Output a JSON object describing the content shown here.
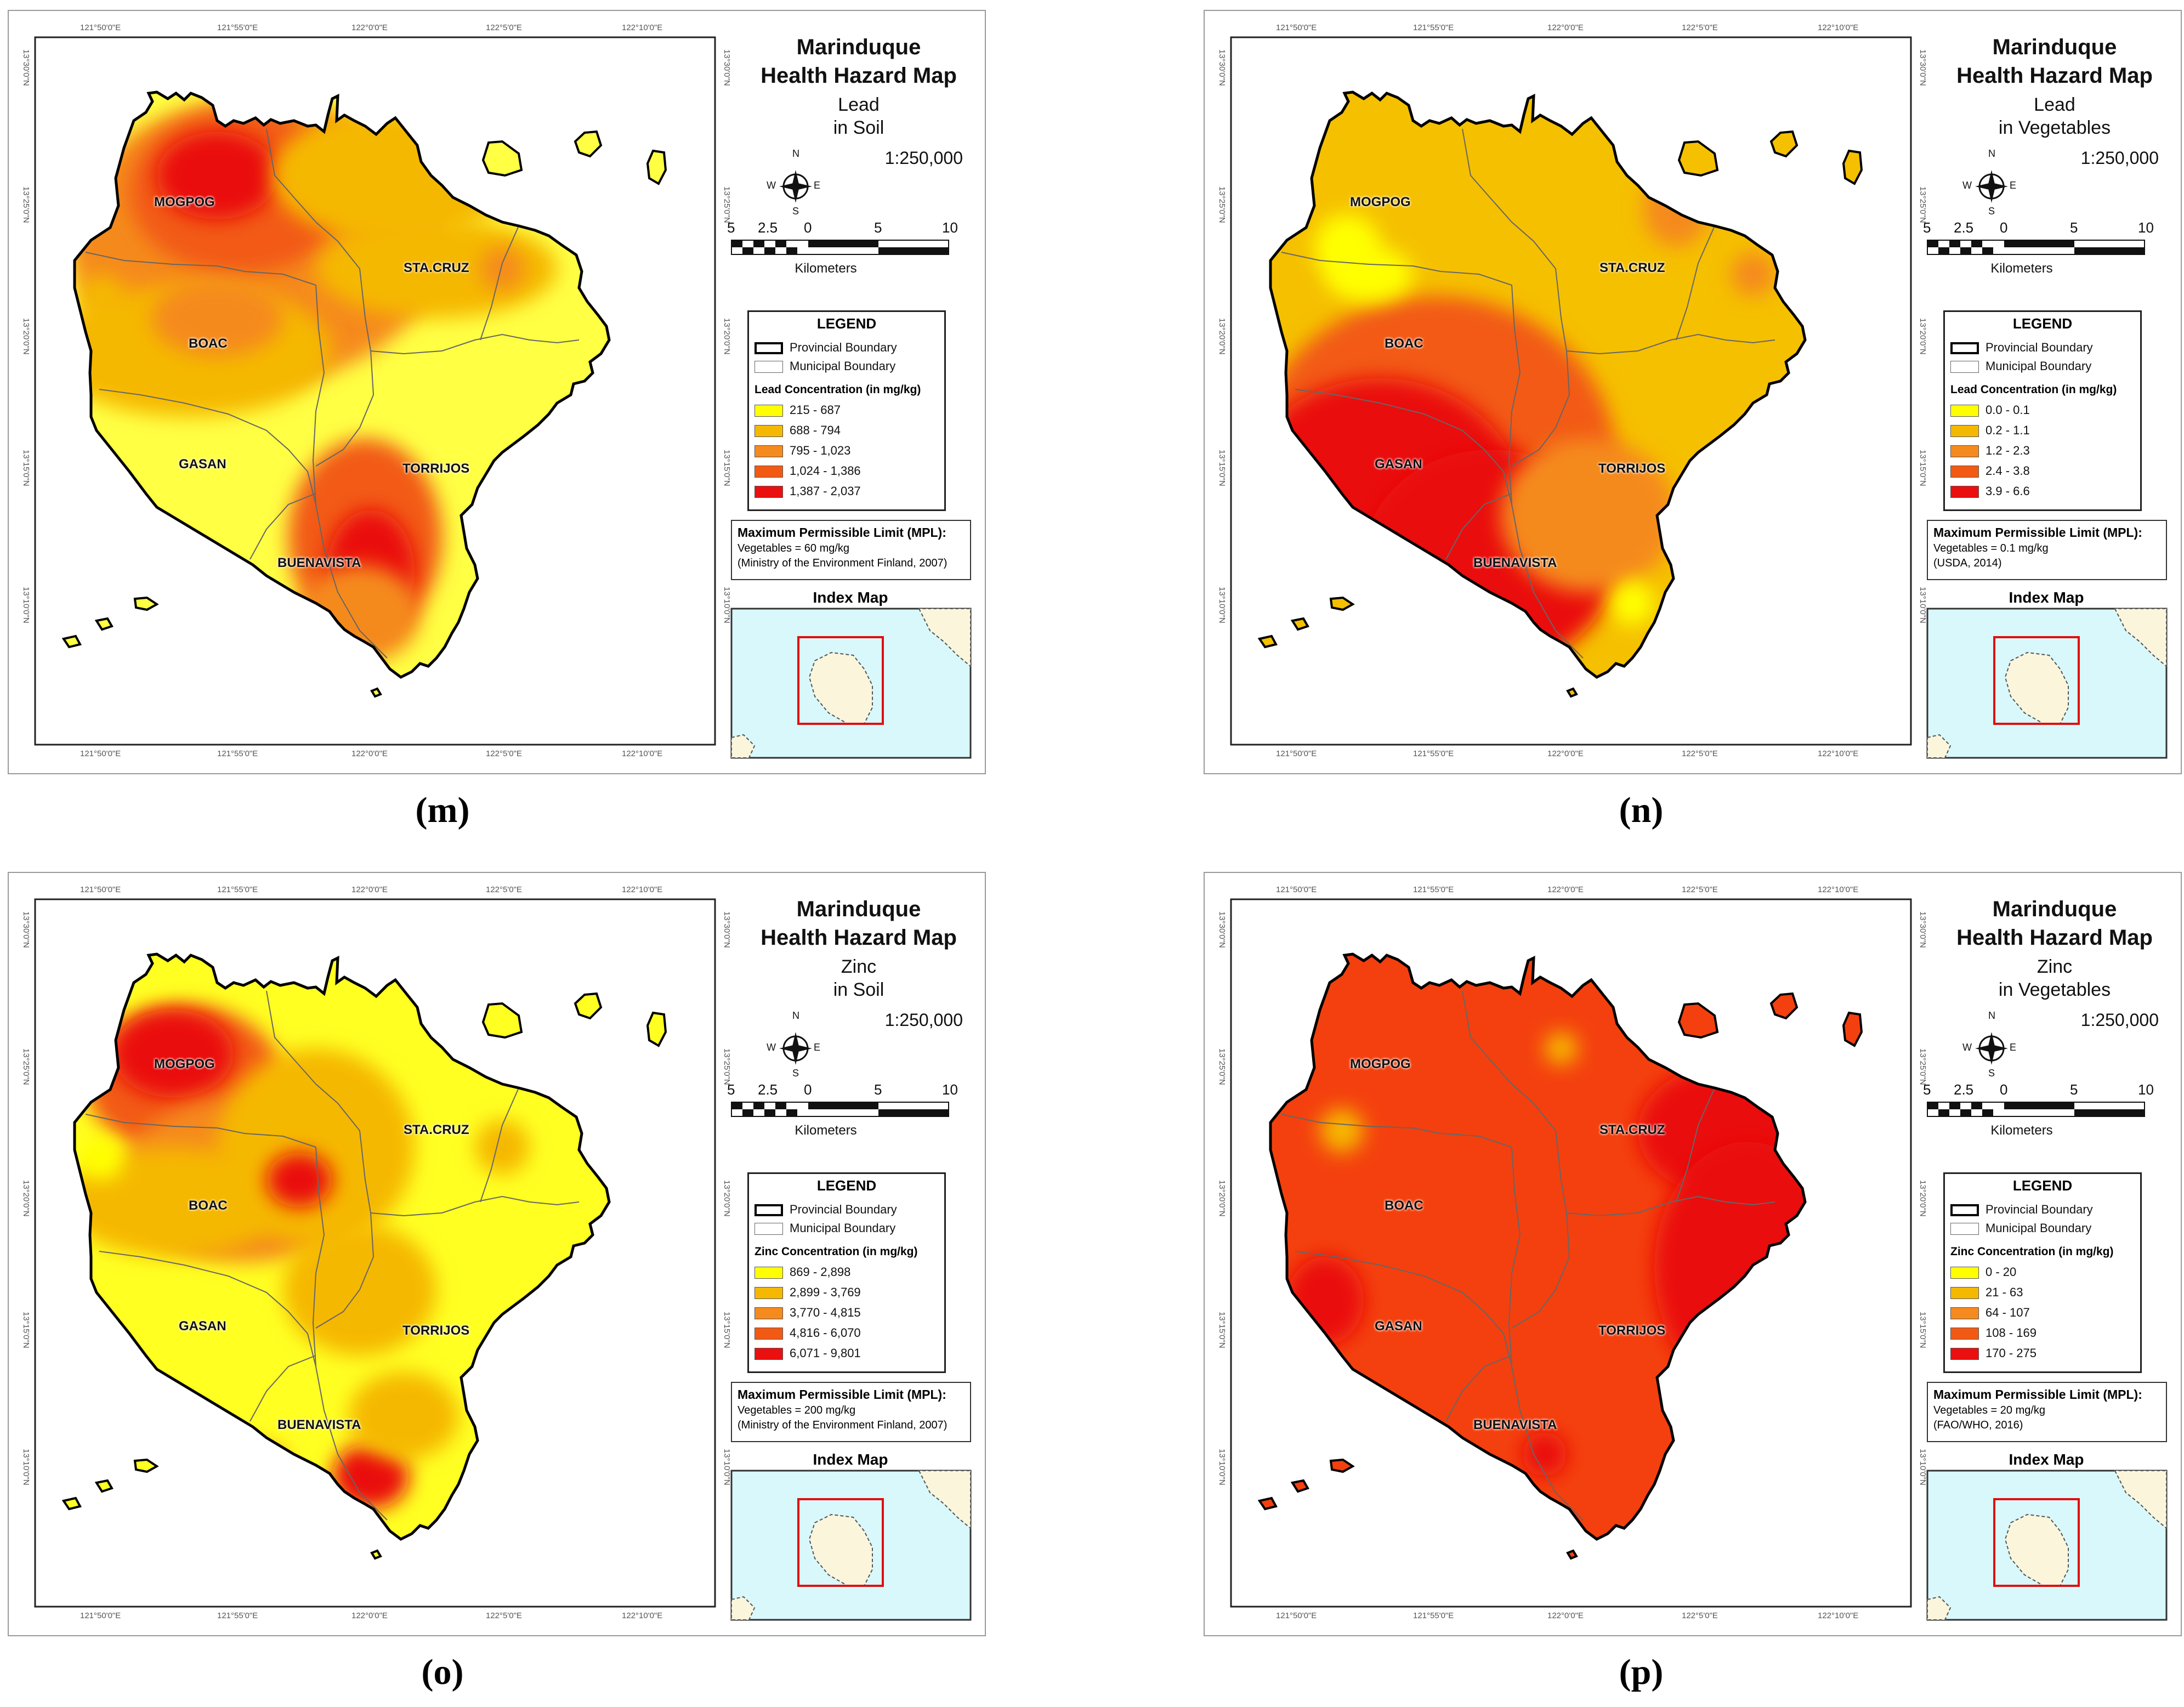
{
  "panels": [
    {
      "id": "m",
      "caption": "(m)",
      "title": "Marinduque Health Hazard Map",
      "title_line1": "Marinduque",
      "title_line2": "Health Hazard Map",
      "metal": "Lead",
      "medium": "in Soil",
      "scale": "1:250,000",
      "scalebar_numbers": [
        "5",
        "2.5",
        "0",
        "5",
        "10"
      ],
      "scalebar_unit": "Kilometers",
      "legend_title": "LEGEND",
      "legend_boundaries": [
        "Provincial Boundary",
        "Municipal Boundary"
      ],
      "concentration_label": "Lead Concentration (in mg/kg)",
      "classes": [
        "215 - 687",
        "688 - 794",
        "795 - 1,023",
        "1,024 - 1,386",
        "1,387 - 2,037"
      ],
      "class_colors": [
        "#ffff00",
        "#f5b800",
        "#f58a1e",
        "#f25a14",
        "#ea1010"
      ],
      "mpl_title": "Maximum Permissible Limit (MPL):",
      "mpl_value": "Vegetables = 60 mg/kg",
      "mpl_source": "(Ministry of the Environment Finland, 2007)",
      "index_map_title": "Index Map",
      "dominant_color": "#ffff44",
      "towns": [
        "MOGPOG",
        "STA.CRUZ",
        "BOAC",
        "GASAN",
        "TORRIJOS",
        "BUENAVISTA"
      ]
    },
    {
      "id": "n",
      "caption": "(n)",
      "title": "Marinduque Health Hazard Map",
      "title_line1": "Marinduque",
      "title_line2": "Health Hazard Map",
      "metal": "Lead",
      "medium": "in Vegetables",
      "scale": "1:250,000",
      "scalebar_numbers": [
        "5",
        "2.5",
        "0",
        "5",
        "10"
      ],
      "scalebar_unit": "Kilometers",
      "legend_title": "LEGEND",
      "legend_boundaries": [
        "Provincial Boundary",
        "Municipal Boundary"
      ],
      "concentration_label": "Lead Concentration (in mg/kg)",
      "classes": [
        "0.0 - 0.1",
        "0.2 - 1.1",
        "1.2 - 2.3",
        "2.4 - 3.8",
        "3.9 - 6.6"
      ],
      "class_colors": [
        "#ffff00",
        "#f5b800",
        "#f58a1e",
        "#f25a14",
        "#ea1010"
      ],
      "mpl_title": "Maximum Permissible Limit (MPL):",
      "mpl_value": "Vegetables = 0.1 mg/kg",
      "mpl_source": "(USDA, 2014)",
      "index_map_title": "Index Map",
      "dominant_color": "#f5c000",
      "towns": [
        "MOGPOG",
        "STA.CRUZ",
        "BOAC",
        "GASAN",
        "TORRIJOS",
        "BUENAVISTA"
      ]
    },
    {
      "id": "o",
      "caption": "(o)",
      "title": "Marinduque Health Hazard Map",
      "title_line1": "Marinduque",
      "title_line2": "Health Hazard Map",
      "metal": "Zinc",
      "medium": "in Soil",
      "scale": "1:250,000",
      "scalebar_numbers": [
        "5",
        "2.5",
        "0",
        "5",
        "10"
      ],
      "scalebar_unit": "Kilometers",
      "legend_title": "LEGEND",
      "legend_boundaries": [
        "Provincial Boundary",
        "Municipal Boundary"
      ],
      "concentration_label": "Zinc Concentration (in mg/kg)",
      "classes": [
        "869 - 2,898",
        "2,899 - 3,769",
        "3,770 - 4,815",
        "4,816 - 6,070",
        "6,071 - 9,801"
      ],
      "class_colors": [
        "#ffff00",
        "#f5b800",
        "#f58a1e",
        "#f25a14",
        "#ea1010"
      ],
      "mpl_title": "Maximum Permissible Limit (MPL):",
      "mpl_value": "Vegetables = 200 mg/kg",
      "mpl_source": "(Ministry of the Environment Finland, 2007)",
      "index_map_title": "Index Map",
      "dominant_color": "#ffff22",
      "towns": [
        "MOGPOG",
        "STA.CRUZ",
        "BOAC",
        "GASAN",
        "TORRIJOS",
        "BUENAVISTA"
      ]
    },
    {
      "id": "p",
      "caption": "(p)",
      "title": "Marinduque Health Hazard Map",
      "title_line1": "Marinduque",
      "title_line2": "Health Hazard Map",
      "metal": "Zinc",
      "medium": "in Vegetables",
      "scale": "1:250,000",
      "scalebar_numbers": [
        "5",
        "2.5",
        "0",
        "5",
        "10"
      ],
      "scalebar_unit": "Kilometers",
      "legend_title": "LEGEND",
      "legend_boundaries": [
        "Provincial Boundary",
        "Municipal Boundary"
      ],
      "concentration_label": "Zinc Concentration (in mg/kg)",
      "classes": [
        "0 - 20",
        "21 - 63",
        "64 - 107",
        "108 - 169",
        "170 - 275"
      ],
      "class_colors": [
        "#ffff00",
        "#f5b800",
        "#f58a1e",
        "#f25a14",
        "#ea1010"
      ],
      "mpl_title": "Maximum Permissible Limit (MPL):",
      "mpl_value": "Vegetables = 20 mg/kg",
      "mpl_source": "(FAO/WHO, 2016)",
      "index_map_title": "Index Map",
      "dominant_color": "#f4400e",
      "towns": [
        "MOGPOG",
        "STA.CRUZ",
        "BOAC",
        "GASAN",
        "TORRIJOS",
        "BUENAVISTA"
      ]
    }
  ],
  "compass": [
    "N",
    "E",
    "S",
    "W"
  ],
  "lon_ticks": [
    "121°50'0\"E",
    "121°55'0\"E",
    "122°0'0\"E",
    "122°5'0\"E",
    "122°10'0\"E"
  ],
  "lat_ticks": [
    "13°30'0\"N",
    "13°25'0\"N",
    "13°20'0\"N",
    "13°15'0\"N",
    "13°10'0\"N"
  ]
}
